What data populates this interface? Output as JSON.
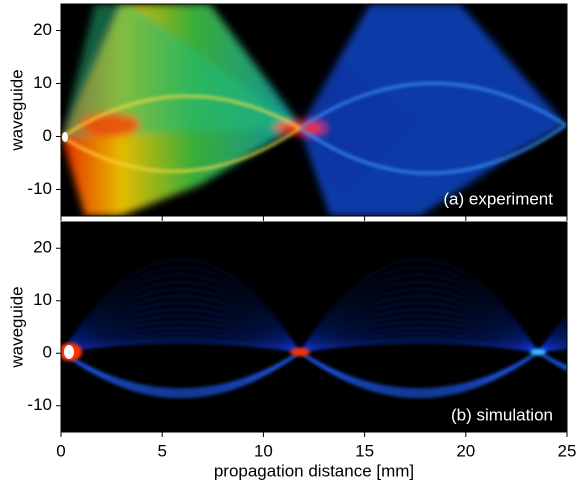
{
  "chart_data": [
    {
      "type": "heatmap",
      "ylabel": "waveguide",
      "annotation": "(a) experiment",
      "xlim": [
        0,
        25
      ],
      "ylim": [
        -15,
        25
      ],
      "yticks": [
        -10,
        0,
        10,
        20
      ]
    },
    {
      "type": "heatmap",
      "ylabel": "waveguide",
      "annotation": "(b) simulation",
      "xlabel": "propagation distance [mm]",
      "xlim": [
        0,
        25
      ],
      "ylim": [
        -15,
        25
      ],
      "yticks": [
        -10,
        0,
        10,
        20
      ],
      "xticks": [
        0,
        5,
        10,
        15,
        20,
        25
      ]
    }
  ]
}
